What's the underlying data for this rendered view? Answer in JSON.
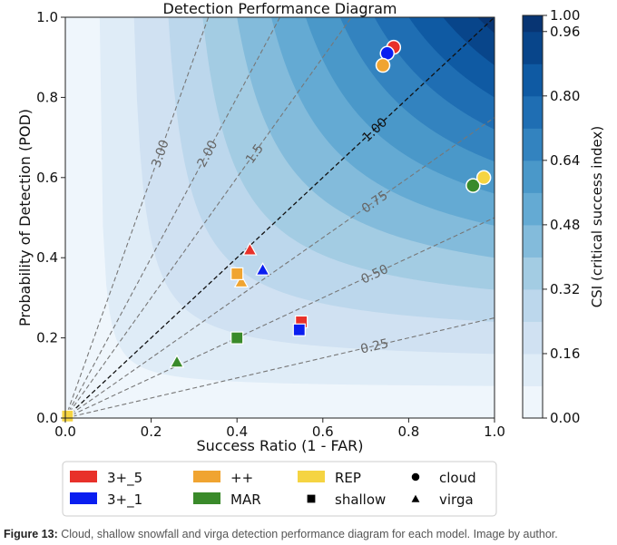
{
  "chart_data": {
    "type": "scatter",
    "title": "Detection Performance Diagram",
    "xlabel": "Success Ratio (1 - FAR)",
    "ylabel": "Probability of Detection (POD)",
    "xlim": [
      0.0,
      1.0
    ],
    "ylim": [
      0.0,
      1.0
    ],
    "xticks": [
      "0.0",
      "0.2",
      "0.4",
      "0.6",
      "0.8",
      "1.0"
    ],
    "yticks": [
      "0.0",
      "0.2",
      "0.4",
      "0.6",
      "0.8",
      "1.0"
    ],
    "colorbar": {
      "label": "CSI (critical success index)",
      "levels": [
        0.0,
        0.08,
        0.16,
        0.24,
        0.32,
        0.4,
        0.48,
        0.56,
        0.64,
        0.72,
        0.8,
        0.88,
        0.96,
        1.0
      ],
      "ticks": [
        "0.00",
        "0.16",
        "0.32",
        "0.48",
        "0.64",
        "0.80",
        "0.96",
        "1.00"
      ],
      "colormap": "Blues"
    },
    "bias_lines": [
      {
        "label": "0.25",
        "value": 0.25
      },
      {
        "label": "0.50",
        "value": 0.5
      },
      {
        "label": "0.75",
        "value": 0.75
      },
      {
        "label": "1.00",
        "value": 1.0
      },
      {
        "label": "1.5",
        "value": 1.5
      },
      {
        "label": "2.00",
        "value": 2.0
      },
      {
        "label": "3.00",
        "value": 3.0
      }
    ],
    "models": [
      {
        "name": "3+_5",
        "color": "#e8312a"
      },
      {
        "name": "3+_1",
        "color": "#0a1ef0"
      },
      {
        "name": "++",
        "color": "#f0a431"
      },
      {
        "name": "MAR",
        "color": "#3a8a2a"
      },
      {
        "name": "REP",
        "color": "#f5d442"
      }
    ],
    "types": [
      {
        "name": "shallow",
        "marker": "square"
      },
      {
        "name": "cloud",
        "marker": "circle"
      },
      {
        "name": "virga",
        "marker": "triangle"
      }
    ],
    "points": [
      {
        "model": "3+_5",
        "type": "cloud",
        "x": 0.765,
        "y": 0.925
      },
      {
        "model": "3+_1",
        "type": "cloud",
        "x": 0.75,
        "y": 0.91
      },
      {
        "model": "++",
        "type": "cloud",
        "x": 0.74,
        "y": 0.88
      },
      {
        "model": "MAR",
        "type": "cloud",
        "x": 0.95,
        "y": 0.58
      },
      {
        "model": "REP",
        "type": "cloud",
        "x": 0.975,
        "y": 0.6
      },
      {
        "model": "3+_5",
        "type": "virga",
        "x": 0.43,
        "y": 0.42
      },
      {
        "model": "3+_1",
        "type": "virga",
        "x": 0.46,
        "y": 0.37
      },
      {
        "model": "++",
        "type": "virga",
        "x": 0.41,
        "y": 0.34
      },
      {
        "model": "MAR",
        "type": "virga",
        "x": 0.26,
        "y": 0.14
      },
      {
        "model": "++",
        "type": "shallow",
        "x": 0.4,
        "y": 0.36
      },
      {
        "model": "3+_5",
        "type": "shallow",
        "x": 0.55,
        "y": 0.24
      },
      {
        "model": "3+_1",
        "type": "shallow",
        "x": 0.545,
        "y": 0.22
      },
      {
        "model": "MAR",
        "type": "shallow",
        "x": 0.4,
        "y": 0.2
      },
      {
        "model": "REP",
        "type": "shallow",
        "x": 0.005,
        "y": 0.005
      }
    ]
  },
  "caption": {
    "label": "Figure 13:",
    "text": " Cloud, shallow snowfall and virga detection performance diagram for each model. Image by author."
  }
}
